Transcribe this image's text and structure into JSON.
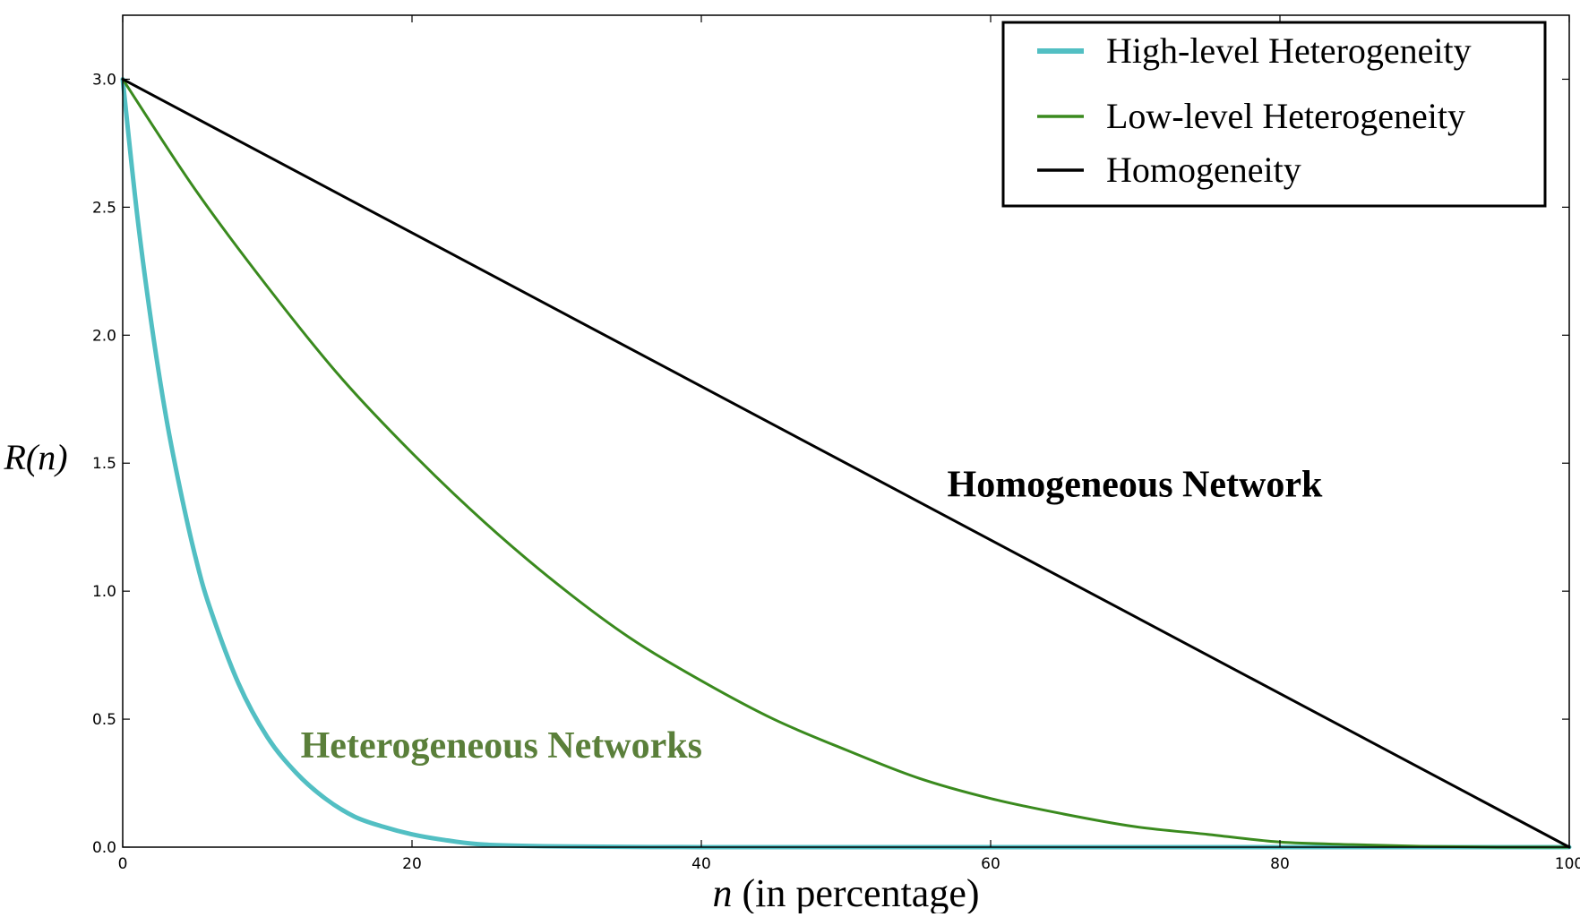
{
  "chart_data": {
    "type": "line",
    "xlabel": "n (in percentage)",
    "xlabel_var": "n",
    "xlabel_rest": " (in percentage)",
    "ylabel": "R(n)",
    "xlim": [
      0,
      100
    ],
    "ylim": [
      0,
      3.25
    ],
    "x_ticks": [
      0,
      20,
      40,
      60,
      80,
      100
    ],
    "y_ticks": [
      0.0,
      0.5,
      1.0,
      1.5,
      2.0,
      2.5,
      3.0
    ],
    "x_tick_labels": [
      "0",
      "20",
      "40",
      "60",
      "80",
      "100"
    ],
    "y_tick_labels": [
      "0.0",
      "0.5",
      "1.0",
      "1.5",
      "2.0",
      "2.5",
      "3.0"
    ],
    "grid": false,
    "legend_position": "top-right",
    "series": [
      {
        "name": "High-level Heterogeneity",
        "color": "#52bfc3",
        "x": [
          0,
          1,
          2,
          3,
          4,
          5,
          6,
          8,
          10,
          12,
          14,
          16,
          18,
          20,
          22,
          25,
          30,
          40,
          50,
          60,
          70,
          80,
          90,
          100
        ],
        "y": [
          3.0,
          2.47,
          2.04,
          1.68,
          1.39,
          1.14,
          0.94,
          0.64,
          0.43,
          0.29,
          0.19,
          0.12,
          0.08,
          0.05,
          0.03,
          0.01,
          0.003,
          0.0,
          0.0,
          0.0,
          0.0,
          0.0,
          0.0,
          0.0
        ]
      },
      {
        "name": "Low-level Heterogeneity",
        "color": "#3a8a1e",
        "x": [
          0,
          5,
          10,
          15,
          20,
          25,
          30,
          35,
          40,
          45,
          50,
          55,
          60,
          65,
          70,
          75,
          80,
          85,
          90,
          95,
          100
        ],
        "y": [
          3.0,
          2.57,
          2.19,
          1.84,
          1.54,
          1.27,
          1.03,
          0.82,
          0.65,
          0.5,
          0.38,
          0.27,
          0.19,
          0.13,
          0.08,
          0.05,
          0.02,
          0.01,
          0.003,
          0.0,
          0.0
        ]
      },
      {
        "name": "Homogeneity",
        "color": "#000000",
        "x": [
          0,
          100
        ],
        "y": [
          3.0,
          0.0
        ]
      }
    ],
    "annotations": [
      {
        "text": "Homogeneous Network",
        "x": 57,
        "y": 1.37,
        "color": "#000000"
      },
      {
        "text": "Heterogeneous Networks",
        "x": 12.3,
        "y": 0.35,
        "color": "#5a7f3a"
      }
    ]
  }
}
